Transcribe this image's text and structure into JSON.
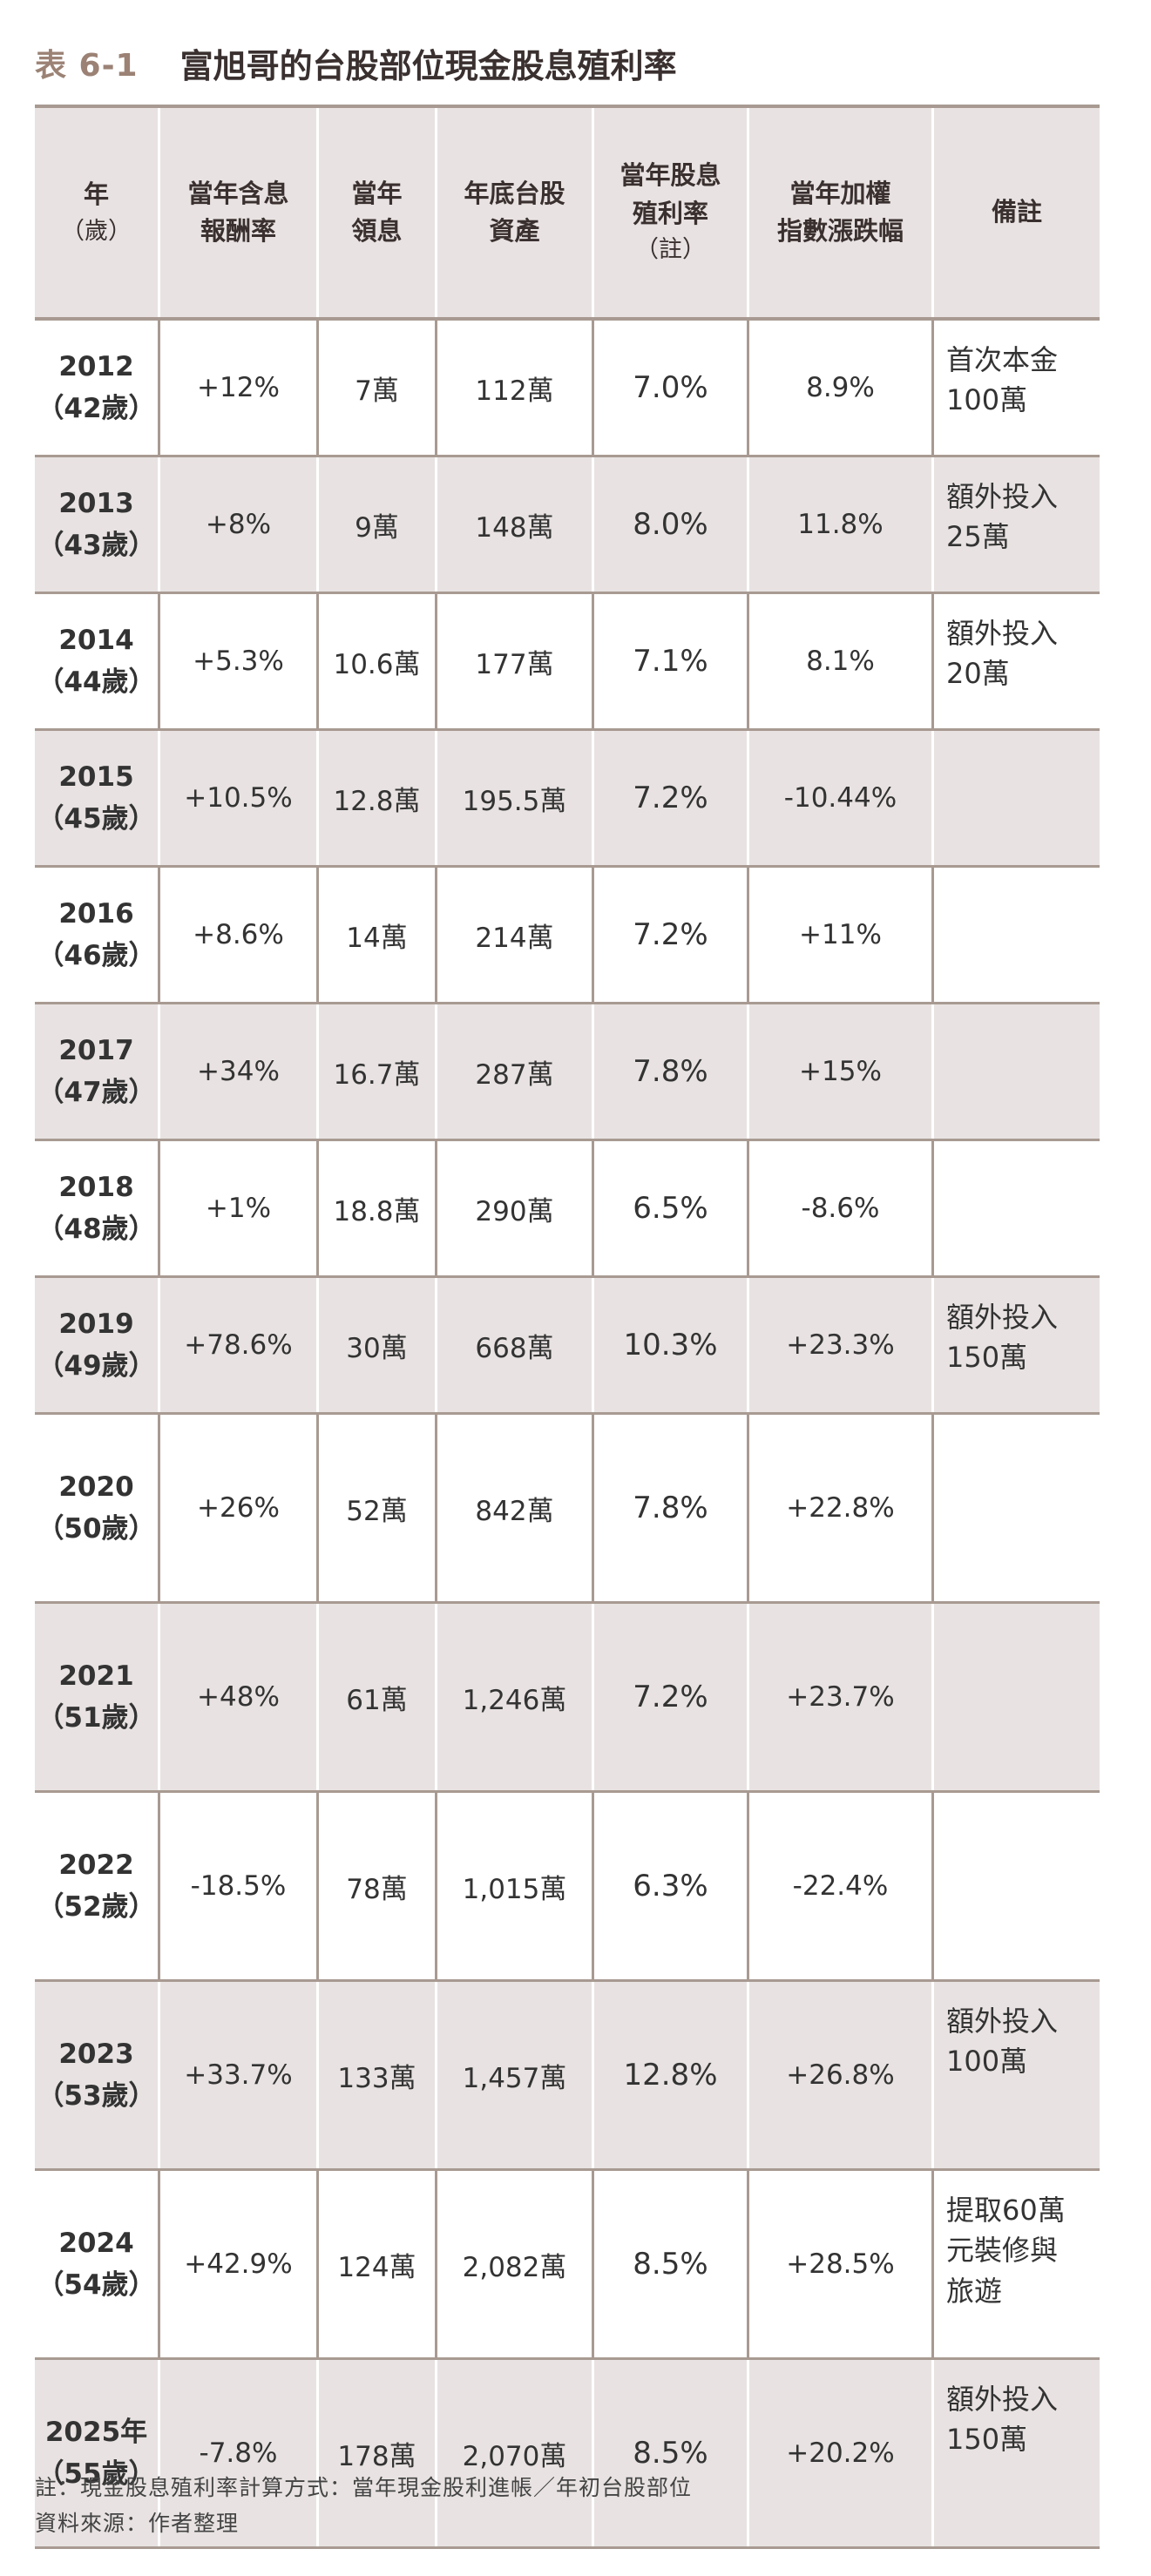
{
  "title": {
    "number": "表 6-1",
    "text": "富旭哥的台股部位現金股息殖利率"
  },
  "header": [
    {
      "lines": [
        "年",
        "（歲）"
      ]
    },
    {
      "lines": [
        "當年含息",
        "報酬率"
      ]
    },
    {
      "lines": [
        "當年",
        "領息"
      ]
    },
    {
      "lines": [
        "年底台股",
        "資產"
      ]
    },
    {
      "lines": [
        "當年股息",
        "殖利率",
        "（註）"
      ]
    },
    {
      "lines": [
        "當年加權",
        "指數漲跌幅"
      ]
    },
    {
      "lines": [
        "備註"
      ]
    }
  ],
  "rows": [
    {
      "year": "2012",
      "age": "（42歲）",
      "ret": "+12%",
      "div": "7萬",
      "asset": "112萬",
      "yield": "7.0%",
      "index": "8.9%",
      "note": "首次本金\n100萬"
    },
    {
      "year": "2013",
      "age": "（43歲）",
      "ret": "+8%",
      "div": "9萬",
      "asset": "148萬",
      "yield": "8.0%",
      "index": "11.8%",
      "note": "額外投入\n25萬"
    },
    {
      "year": "2014",
      "age": "（44歲）",
      "ret": "+5.3%",
      "div": "10.6萬",
      "asset": "177萬",
      "yield": "7.1%",
      "index": "8.1%",
      "note": "額外投入\n20萬"
    },
    {
      "year": "2015",
      "age": "（45歲）",
      "ret": "+10.5%",
      "div": "12.8萬",
      "asset": "195.5萬",
      "yield": "7.2%",
      "index": "-10.44%",
      "note": ""
    },
    {
      "year": "2016",
      "age": "（46歲）",
      "ret": "+8.6%",
      "div": "14萬",
      "asset": "214萬",
      "yield": "7.2%",
      "index": "+11%",
      "note": ""
    },
    {
      "year": "2017",
      "age": "（47歲）",
      "ret": "+34%",
      "div": "16.7萬",
      "asset": "287萬",
      "yield": "7.8%",
      "index": "+15%",
      "note": ""
    },
    {
      "year": "2018",
      "age": "（48歲）",
      "ret": "+1%",
      "div": "18.8萬",
      "asset": "290萬",
      "yield": "6.5%",
      "index": "-8.6%",
      "note": ""
    },
    {
      "year": "2019",
      "age": "（49歲）",
      "ret": "+78.6%",
      "div": "30萬",
      "asset": "668萬",
      "yield": "10.3%",
      "index": "+23.3%",
      "note": "額外投入\n150萬"
    },
    {
      "year": "2020",
      "age": "（50歲）",
      "ret": "+26%",
      "div": "52萬",
      "asset": "842萬",
      "yield": "7.8%",
      "index": "+22.8%",
      "note": ""
    },
    {
      "year": "2021",
      "age": "（51歲）",
      "ret": "+48%",
      "div": "61萬",
      "asset": "1,246萬",
      "yield": "7.2%",
      "index": "+23.7%",
      "note": ""
    },
    {
      "year": "2022",
      "age": "（52歲）",
      "ret": "-18.5%",
      "div": "78萬",
      "asset": "1,015萬",
      "yield": "6.3%",
      "index": "-22.4%",
      "note": ""
    },
    {
      "year": "2023",
      "age": "（53歲）",
      "ret": "+33.7%",
      "div": "133萬",
      "asset": "1,457萬",
      "yield": "12.8%",
      "index": "+26.8%",
      "note": "額外投入\n100萬"
    },
    {
      "year": "2024",
      "age": "（54歲）",
      "ret": "+42.9%",
      "div": "124萬",
      "asset": "2,082萬",
      "yield": "8.5%",
      "index": "+28.5%",
      "note": "提取60萬\n元裝修與\n旅遊"
    },
    {
      "year": "2025年",
      "age": "（55歲）",
      "ret": "-7.8%",
      "div": "178萬",
      "asset": "2,070萬",
      "yield": "8.5%",
      "index": "+20.2%",
      "note": "額外投入\n150萬"
    }
  ],
  "footnotes": [
    "註：現金股息殖利率計算方式：當年現金股利進帳／年初台股部位",
    "資料來源：作者整理"
  ]
}
